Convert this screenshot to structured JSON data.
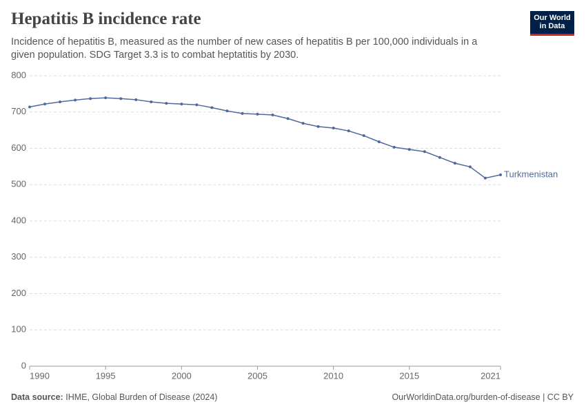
{
  "title": "Hepatitis B incidence rate",
  "subtitle": "Incidence of hepatitis B, measured as the number of new cases of hepatitis B per 100,000 individuals in a given population. SDG Target 3.3 is to combat heptatitis by 2030.",
  "logo": [
    "Our World",
    "in Data"
  ],
  "footer": {
    "source_label": "Data source:",
    "source": "IHME, Global Burden of Disease (2024)",
    "link": "OurWorldinData.org/burden-of-disease | CC BY"
  },
  "chart_data": {
    "type": "line",
    "x": [
      1990,
      1991,
      1992,
      1993,
      1994,
      1995,
      1996,
      1997,
      1998,
      1999,
      2000,
      2001,
      2002,
      2003,
      2004,
      2005,
      2006,
      2007,
      2008,
      2009,
      2010,
      2011,
      2012,
      2013,
      2014,
      2015,
      2016,
      2017,
      2018,
      2019,
      2020,
      2021
    ],
    "series": [
      {
        "name": "Turkmenistan",
        "color": "#4c6a9c",
        "values": [
          714,
          722,
          728,
          733,
          737,
          739,
          737,
          734,
          728,
          724,
          722,
          720,
          712,
          703,
          696,
          694,
          692,
          682,
          669,
          660,
          656,
          648,
          635,
          618,
          603,
          597,
          591,
          575,
          559,
          549,
          518,
          527
        ]
      }
    ],
    "xlim": [
      1990,
      2021
    ],
    "xticks": [
      1990,
      1995,
      2000,
      2005,
      2010,
      2015,
      2021
    ],
    "ylim": [
      0,
      800
    ],
    "yticks": [
      0,
      100,
      200,
      300,
      400,
      500,
      600,
      700,
      800
    ],
    "grid": true
  }
}
